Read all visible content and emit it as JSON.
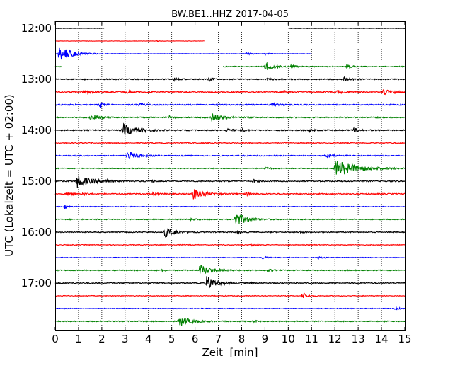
{
  "chart_data": {
    "type": "line",
    "title": "BW.BE1..HHZ 2017-04-05",
    "xlabel": "Zeit  [min]",
    "ylabel": "UTC (Lokalzeit = UTC + 02:00)",
    "xlim": [
      0,
      15
    ],
    "x_ticks": [
      "0",
      "1",
      "2",
      "3",
      "4",
      "5",
      "6",
      "7",
      "8",
      "9",
      "10",
      "11",
      "12",
      "13",
      "14",
      "15"
    ],
    "y_tick_labels": [
      "12:00",
      "13:00",
      "14:00",
      "15:00",
      "16:00",
      "17:00"
    ],
    "grid": "vertical dotted",
    "trace_minutes_per_line": 15,
    "trace_colors": [
      "#000000",
      "#ff0000",
      "#0000ff",
      "#008000"
    ],
    "series": [
      {
        "start": "12:00",
        "segments": [
          [
            0,
            2.1
          ],
          [
            10,
            15
          ]
        ],
        "noise": 0.35,
        "events": []
      },
      {
        "start": "12:15",
        "segments": [
          [
            0,
            6.4
          ],
          [
            15,
            15
          ]
        ],
        "noise": 0.25,
        "events": [
          [
            4.4,
            2,
            0.04
          ]
        ]
      },
      {
        "start": "12:30",
        "segments": [
          [
            0,
            11
          ]
        ],
        "noise": 0.3,
        "events": [
          [
            0.15,
            12,
            0.5
          ],
          [
            8.2,
            2.5,
            0.2
          ],
          [
            9.0,
            2,
            0.15
          ]
        ]
      },
      {
        "start": "12:45",
        "segments": [
          [
            0,
            0.3
          ],
          [
            7.2,
            15
          ]
        ],
        "noise": 0.6,
        "events": [
          [
            9.0,
            6,
            0.35
          ],
          [
            10.1,
            2,
            0.2
          ],
          [
            12.5,
            2.5,
            0.2
          ]
        ]
      },
      {
        "start": "13:00",
        "segments": [
          [
            0,
            15
          ]
        ],
        "noise": 0.8,
        "events": [
          [
            5.1,
            2.5,
            0.15
          ],
          [
            6.6,
            2.5,
            0.15
          ],
          [
            9.1,
            2,
            0.15
          ],
          [
            12.4,
            3,
            0.25
          ]
        ]
      },
      {
        "start": "13:15",
        "segments": [
          [
            0,
            15
          ]
        ],
        "noise": 0.8,
        "events": [
          [
            1.2,
            3,
            0.25
          ],
          [
            3.1,
            2,
            0.15
          ],
          [
            9.8,
            2,
            0.15
          ],
          [
            12.1,
            2.5,
            0.2
          ],
          [
            14.0,
            4,
            0.4
          ]
        ]
      },
      {
        "start": "13:30",
        "segments": [
          [
            0,
            15
          ]
        ],
        "noise": 0.8,
        "events": [
          [
            1.9,
            5,
            0.15
          ],
          [
            3.6,
            3,
            0.15
          ],
          [
            6.9,
            2,
            0.1
          ],
          [
            9.3,
            2,
            0.2
          ]
        ]
      },
      {
        "start": "13:45",
        "segments": [
          [
            0,
            15
          ]
        ],
        "noise": 0.8,
        "events": [
          [
            1.5,
            5,
            0.3
          ],
          [
            6.7,
            6,
            0.4
          ],
          [
            4.9,
            2,
            0.1
          ]
        ]
      },
      {
        "start": "14:00",
        "segments": [
          [
            0,
            15
          ]
        ],
        "noise": 0.8,
        "events": [
          [
            2.9,
            9,
            0.5
          ],
          [
            7.3,
            2.5,
            0.25
          ],
          [
            8.0,
            2,
            0.15
          ],
          [
            10.9,
            2,
            0.15
          ],
          [
            12.8,
            2.5,
            0.3
          ]
        ]
      },
      {
        "start": "14:15",
        "segments": [
          [
            0,
            15
          ]
        ],
        "noise": 0.6,
        "events": []
      },
      {
        "start": "14:30",
        "segments": [
          [
            0,
            15
          ]
        ],
        "noise": 0.7,
        "events": [
          [
            3.1,
            7,
            0.35
          ],
          [
            11.6,
            3,
            0.3
          ]
        ]
      },
      {
        "start": "14:45",
        "segments": [
          [
            0,
            15
          ]
        ],
        "noise": 0.6,
        "events": [
          [
            9.0,
            2.5,
            0.15
          ],
          [
            12.0,
            12,
            0.9
          ]
        ]
      },
      {
        "start": "15:00",
        "segments": [
          [
            0,
            15
          ]
        ],
        "noise": 0.8,
        "events": [
          [
            0.9,
            10,
            0.5
          ],
          [
            2.1,
            2.5,
            0.25
          ],
          [
            4.1,
            2,
            0.15
          ],
          [
            8.5,
            2,
            0.15
          ]
        ]
      },
      {
        "start": "15:15",
        "segments": [
          [
            0,
            15
          ]
        ],
        "noise": 0.8,
        "events": [
          [
            0.5,
            2.5,
            0.2
          ],
          [
            1.2,
            2,
            0.15
          ],
          [
            4.2,
            2.5,
            0.15
          ],
          [
            5.9,
            8,
            0.45
          ],
          [
            8.2,
            2,
            0.2
          ]
        ]
      },
      {
        "start": "15:30",
        "segments": [
          [
            0,
            15
          ]
        ],
        "noise": 0.5,
        "events": [
          [
            0.4,
            3,
            0.15
          ]
        ]
      },
      {
        "start": "15:45",
        "segments": [
          [
            0,
            15
          ]
        ],
        "noise": 0.7,
        "events": [
          [
            7.7,
            11,
            0.4
          ],
          [
            5.8,
            2,
            0.15
          ]
        ]
      },
      {
        "start": "16:00",
        "segments": [
          [
            0,
            15
          ]
        ],
        "noise": 0.7,
        "events": [
          [
            4.7,
            8,
            0.35
          ],
          [
            7.8,
            2.5,
            0.15
          ],
          [
            10.4,
            2,
            0.15
          ]
        ]
      },
      {
        "start": "16:15",
        "segments": [
          [
            0,
            15
          ]
        ],
        "noise": 0.5,
        "events": [
          [
            8.4,
            2,
            0.15
          ]
        ]
      },
      {
        "start": "16:30",
        "segments": [
          [
            0,
            15
          ]
        ],
        "noise": 0.5,
        "events": [
          [
            8.9,
            2,
            0.15
          ],
          [
            11.3,
            2,
            0.15
          ]
        ]
      },
      {
        "start": "16:45",
        "segments": [
          [
            0,
            15
          ]
        ],
        "noise": 0.7,
        "events": [
          [
            6.2,
            9,
            0.4
          ],
          [
            4.6,
            2,
            0.1
          ],
          [
            9.1,
            2.5,
            0.15
          ]
        ]
      },
      {
        "start": "17:00",
        "segments": [
          [
            0,
            15
          ]
        ],
        "noise": 0.7,
        "events": [
          [
            6.5,
            10,
            0.4
          ],
          [
            8.4,
            2,
            0.15
          ]
        ]
      },
      {
        "start": "17:15",
        "segments": [
          [
            0,
            15
          ]
        ],
        "noise": 0.5,
        "events": [
          [
            10.6,
            6,
            0.15
          ]
        ]
      },
      {
        "start": "17:30",
        "segments": [
          [
            0,
            15
          ]
        ],
        "noise": 0.5,
        "events": [
          [
            14.6,
            3,
            0.2
          ]
        ]
      },
      {
        "start": "17:45",
        "segments": [
          [
            0,
            15
          ]
        ],
        "noise": 0.7,
        "events": [
          [
            5.3,
            8,
            0.4
          ],
          [
            8.5,
            2,
            0.1
          ]
        ]
      }
    ]
  }
}
